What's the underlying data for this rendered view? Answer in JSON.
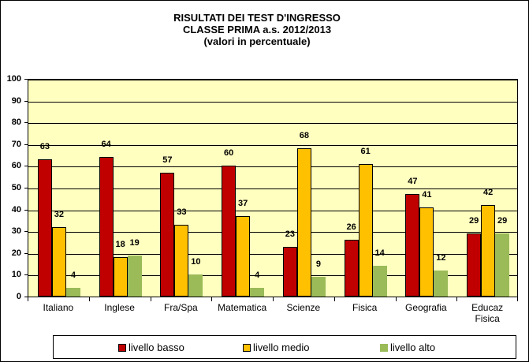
{
  "chart_data": {
    "type": "bar",
    "title": "RISULTATI DEI TEST D'INGRESSO",
    "subtitle": [
      "CLASSE PRIMA a.s. 2012/2013",
      "(valori in percentuale)"
    ],
    "xlabel": "",
    "ylabel": "",
    "ylim": [
      0,
      100
    ],
    "yticks": [
      0,
      10,
      20,
      30,
      40,
      50,
      60,
      70,
      80,
      90,
      100
    ],
    "grid": true,
    "legend_position": "bottom",
    "categories": [
      "Italiano",
      "Inglese",
      "Fra/Spa",
      "Matematica",
      "Scienze",
      "Fisica",
      "Geografia",
      "Educaz Fisica"
    ],
    "series": [
      {
        "name": "livello basso",
        "color": "#c00000",
        "values": [
          63,
          64,
          57,
          60,
          23,
          26,
          47,
          29
        ]
      },
      {
        "name": "livello medio",
        "color": "#ffc000",
        "values": [
          32,
          18,
          33,
          37,
          68,
          61,
          41,
          42
        ]
      },
      {
        "name": "livello alto",
        "color": "#9bbb59",
        "values": [
          4,
          19,
          10,
          4,
          9,
          14,
          12,
          29
        ]
      }
    ]
  },
  "title_lines": [
    "RISULTATI DEI TEST D'INGRESSO",
    "CLASSE PRIMA a.s. 2012/2013",
    "(valori in percentuale)"
  ],
  "category_labels": [
    "Italiano",
    "Inglese",
    "Fra/Spa",
    "Matematica",
    "Scienze",
    "Fisica",
    "Geografia",
    "Educaz\nFisica"
  ],
  "legend": [
    {
      "label": "livello basso",
      "color": "#c00000"
    },
    {
      "label": "livello medio",
      "color": "#ffc000"
    },
    {
      "label": "livello alto",
      "color": "#9bbb59"
    }
  ]
}
